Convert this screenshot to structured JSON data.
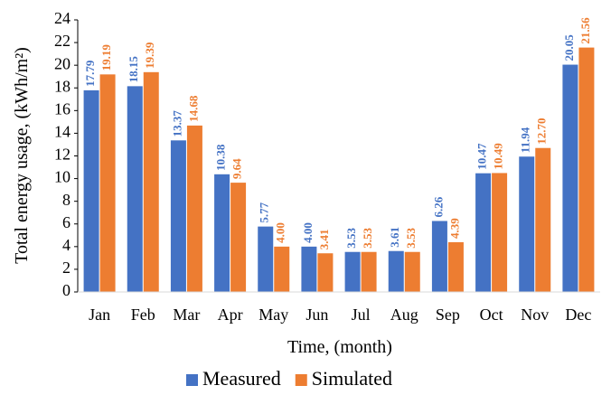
{
  "chart_data": {
    "type": "bar",
    "x_label": "Time, (month)",
    "y_label": "Total energy usage, (kWh/m²)",
    "categories": [
      "Jan",
      "Feb",
      "Mar",
      "Apr",
      "May",
      "Jun",
      "Jul",
      "Aug",
      "Sep",
      "Oct",
      "Nov",
      "Dec"
    ],
    "series": [
      {
        "name": "Measured",
        "color": "#4472c4",
        "values": [
          17.79,
          18.15,
          13.37,
          10.38,
          5.77,
          4.0,
          3.53,
          3.61,
          6.26,
          10.47,
          11.94,
          20.05
        ],
        "value_labels": [
          "17.79",
          "18.15",
          "13.37",
          "10.38",
          "5.77",
          "4.00",
          "3.53",
          "3.61",
          "6.26",
          "10.47",
          "11.94",
          "20.05"
        ]
      },
      {
        "name": "Simulated",
        "color": "#ed7d31",
        "values": [
          19.19,
          19.39,
          14.68,
          9.64,
          4.0,
          3.41,
          3.53,
          3.53,
          4.39,
          10.49,
          12.7,
          21.56
        ],
        "value_labels": [
          "19.19",
          "19.39",
          "14.68",
          "9.64",
          "4.00",
          "3.41",
          "3.53",
          "3.53",
          "4.39",
          "10.49",
          "12.70",
          "21.56"
        ]
      }
    ],
    "ylim": [
      0,
      24
    ],
    "yticks": [
      0,
      2,
      4,
      6,
      8,
      10,
      12,
      14,
      16,
      18,
      20,
      22,
      24
    ]
  }
}
